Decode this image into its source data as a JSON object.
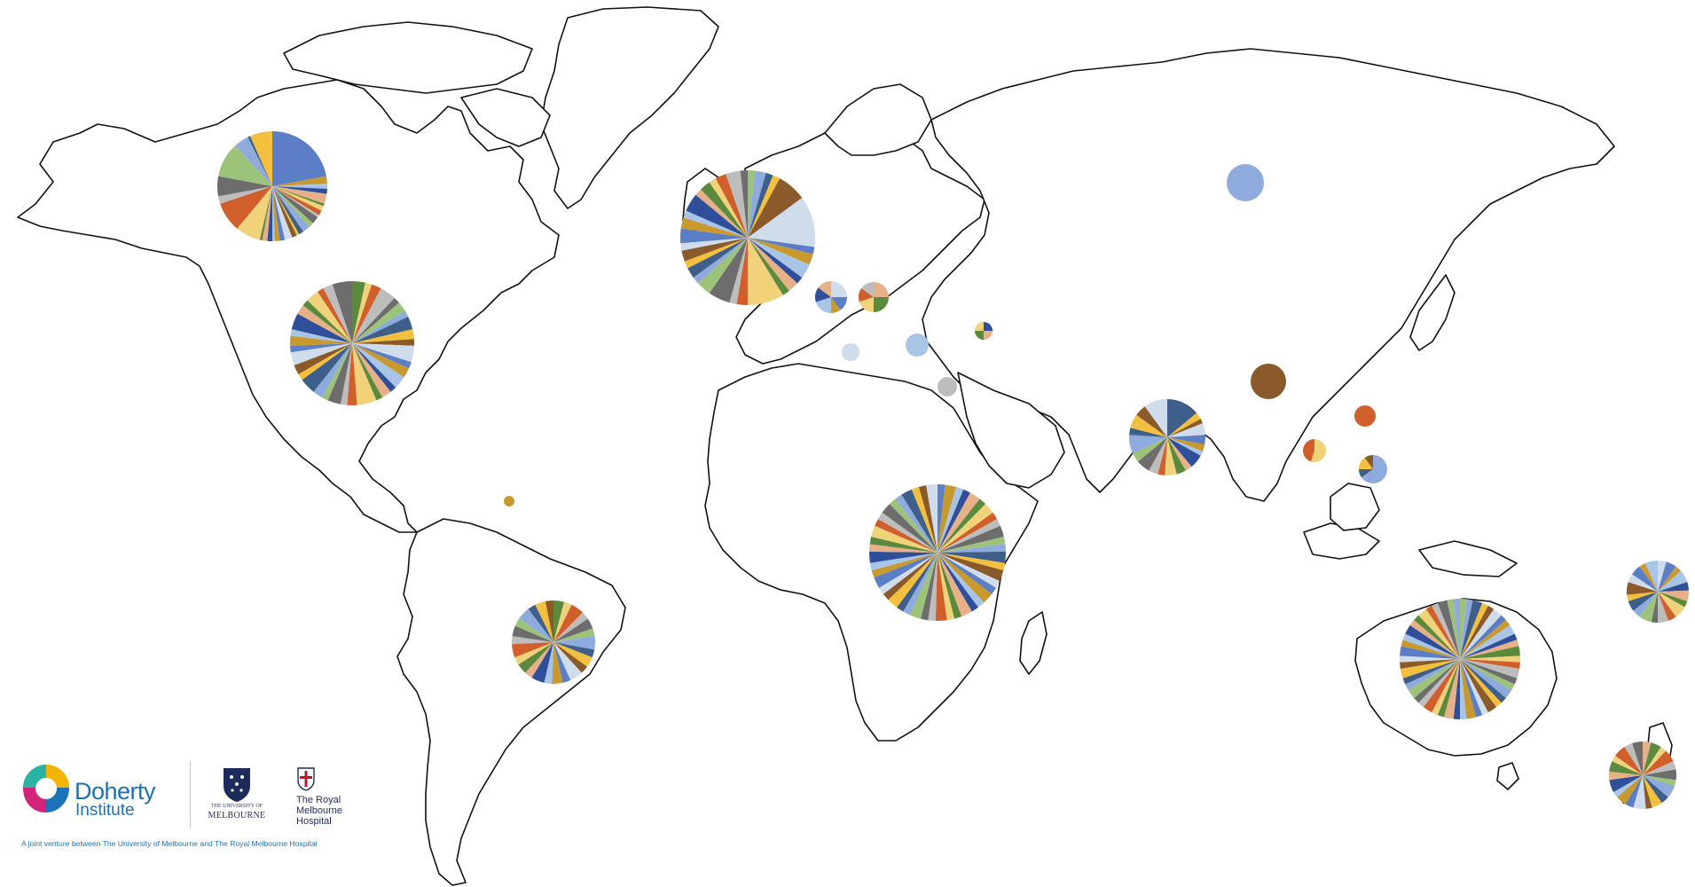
{
  "palette": [
    "#5b7ec6",
    "#c89a2e",
    "#a8c4e6",
    "#2f4f9a",
    "#e6b088",
    "#5b8a3c",
    "#f0d27a",
    "#d15f2c",
    "#bdbdbd",
    "#6d6d6d",
    "#9dc37a",
    "#8faadc",
    "#3e5f8a",
    "#f2c03e",
    "#8b5a2b",
    "#cfdceb"
  ],
  "regions": [
    {
      "id": "canada",
      "label": "Canada",
      "slices": [
        30,
        3,
        2,
        2,
        4,
        1,
        2,
        2,
        1,
        3,
        2,
        3,
        2,
        1,
        2,
        3,
        2,
        2,
        1,
        2,
        2,
        1,
        10,
        12,
        3,
        8,
        14,
        6,
        1,
        9
      ]
    },
    {
      "id": "usa",
      "label": "United States",
      "slices": [
        4,
        2,
        3,
        5,
        2,
        3,
        2,
        4,
        3,
        2,
        5,
        2,
        3,
        4,
        2,
        3,
        2,
        6,
        3,
        2,
        4,
        2,
        3,
        5,
        2,
        3,
        4,
        2,
        3,
        2,
        5,
        3,
        2,
        4,
        2,
        3,
        6
      ]
    },
    {
      "id": "west-europe",
      "label": "Western Europe",
      "slices": [
        2,
        3,
        2,
        2,
        8,
        14,
        2,
        3,
        4,
        2,
        3,
        2,
        10,
        3,
        2,
        6,
        4,
        2,
        3,
        2,
        3,
        2,
        4,
        3,
        2,
        5,
        2,
        3,
        2,
        3,
        4,
        2
      ]
    },
    {
      "id": "central-europe",
      "label": "Central Europe",
      "slices": [
        25,
        15,
        10,
        20,
        15,
        15
      ]
    },
    {
      "id": "eastern-europe",
      "label": "Eastern Europe",
      "slices": [
        25,
        25,
        20,
        15,
        15
      ]
    },
    {
      "id": "italy",
      "label": "Italy",
      "slices": [
        100
      ]
    },
    {
      "id": "greece",
      "label": "Greece",
      "slices": [
        100
      ]
    },
    {
      "id": "turkey",
      "label": "Turkey",
      "slices": [
        25,
        25,
        25,
        25
      ]
    },
    {
      "id": "middle-east",
      "label": "Middle East",
      "slices": [
        100
      ]
    },
    {
      "id": "russia",
      "label": "Russia",
      "slices": [
        100
      ]
    },
    {
      "id": "central-asia",
      "label": "Central Asia",
      "slices": [
        100
      ]
    },
    {
      "id": "caribbean",
      "label": "Caribbean",
      "slices": [
        100
      ]
    },
    {
      "id": "south-asia",
      "label": "South Asia",
      "slices": [
        14,
        3,
        2,
        5,
        4,
        3,
        2,
        6,
        3,
        4,
        5,
        3,
        4,
        6,
        4,
        8,
        3,
        6,
        5,
        10
      ]
    },
    {
      "id": "east-asia",
      "label": "East Asia",
      "slices": [
        100
      ]
    },
    {
      "id": "southeast-asia",
      "label": "Southeast Asia",
      "slices": [
        55,
        45
      ]
    },
    {
      "id": "philippines",
      "label": "Philippines",
      "slices": [
        65,
        10,
        15,
        10
      ]
    },
    {
      "id": "africa",
      "label": "Africa",
      "slices": [
        2,
        3,
        2,
        2,
        3,
        2,
        3,
        2,
        2,
        3,
        2,
        2,
        3,
        2,
        3,
        2,
        2,
        3,
        2,
        2,
        3,
        2,
        2,
        3,
        2,
        2,
        3,
        2,
        2,
        3,
        2,
        2,
        3,
        2,
        2,
        3,
        2,
        2,
        3,
        2,
        2,
        3,
        2,
        2,
        3,
        2,
        2,
        3
      ]
    },
    {
      "id": "south-america",
      "label": "South America",
      "slices": [
        4,
        3,
        5,
        3,
        4,
        3,
        5,
        3,
        4,
        3,
        5,
        3,
        4,
        3,
        5,
        3,
        4,
        3,
        5,
        3,
        4,
        3,
        5,
        3,
        4,
        3
      ]
    },
    {
      "id": "australia",
      "label": "Australia",
      "slices": [
        2,
        2,
        3,
        2,
        2,
        3,
        2,
        2,
        3,
        2,
        2,
        3,
        2,
        2,
        3,
        2,
        2,
        3,
        2,
        2,
        3,
        2,
        2,
        3,
        2,
        2,
        3,
        2,
        2,
        3,
        2,
        2,
        3,
        2,
        2,
        3,
        2,
        2,
        3,
        2,
        2,
        3,
        2,
        2,
        3,
        2,
        2,
        3,
        2,
        2
      ]
    },
    {
      "id": "pacific-islands",
      "label": "Pacific Islands",
      "slices": [
        4,
        5,
        3,
        6,
        4,
        5,
        3,
        6,
        4,
        5,
        3,
        6,
        4,
        5,
        3,
        6,
        4,
        5,
        3,
        6
      ]
    },
    {
      "id": "new-zealand",
      "label": "New Zealand",
      "slices": [
        4,
        5,
        3,
        6,
        4,
        5,
        3,
        6,
        4,
        5,
        3,
        6,
        4,
        5,
        3,
        6,
        4,
        5,
        3,
        6,
        4,
        5
      ]
    }
  ],
  "logos": {
    "brand_name": "Doherty",
    "brand_sub": "Institute",
    "uom_small": "THE UNIVERSITY OF",
    "uom_name": "MELBOURNE",
    "rmh_name": "The Royal Melbourne Hospital",
    "tagline": "A joint venture between The University of Melbourne and The Royal Melbourne Hospital"
  }
}
